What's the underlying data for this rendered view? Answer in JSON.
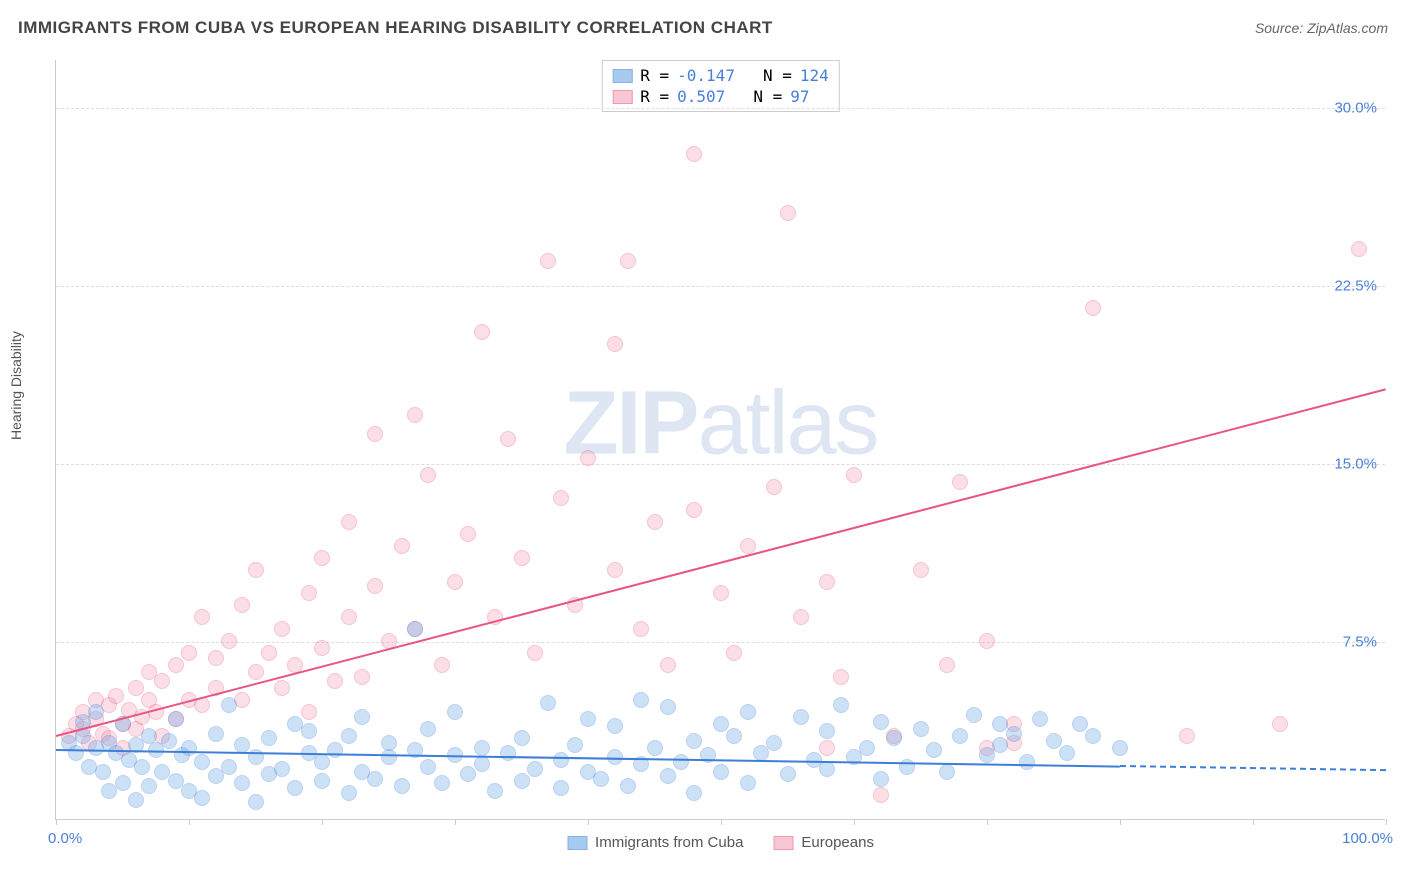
{
  "header": {
    "title": "IMMIGRANTS FROM CUBA VS EUROPEAN HEARING DISABILITY CORRELATION CHART",
    "source": "Source: ZipAtlas.com"
  },
  "watermark": {
    "zip": "ZIP",
    "atlas": "atlas"
  },
  "ylabel": "Hearing Disability",
  "chart": {
    "type": "scatter",
    "xlim": [
      0,
      100
    ],
    "ylim": [
      0,
      32
    ],
    "yticks": [
      {
        "val": 7.5,
        "label": "7.5%"
      },
      {
        "val": 15.0,
        "label": "15.0%"
      },
      {
        "val": 22.5,
        "label": "22.5%"
      },
      {
        "val": 30.0,
        "label": "30.0%"
      }
    ],
    "xtick_labels": {
      "min": "0.0%",
      "max": "100.0%"
    },
    "xtick_positions": [
      0,
      10,
      20,
      30,
      40,
      50,
      60,
      70,
      80,
      90,
      100
    ],
    "background_color": "#ffffff",
    "grid_color": "#dddddd"
  },
  "series": {
    "cuba": {
      "label": "Immigrants from Cuba",
      "color_fill": "#6ea8e8",
      "color_stroke": "#3d7fd6",
      "fill_opacity": 0.35,
      "R": "-0.147",
      "N": "124",
      "trend": {
        "x1": 0,
        "y1": 3.0,
        "x2": 80,
        "y2": 2.3,
        "dash_to_x": 100
      },
      "points": [
        [
          1,
          3.2
        ],
        [
          1.5,
          2.8
        ],
        [
          2,
          3.5
        ],
        [
          2,
          4.1
        ],
        [
          2.5,
          2.2
        ],
        [
          3,
          3.0
        ],
        [
          3,
          4.5
        ],
        [
          3.5,
          2.0
        ],
        [
          4,
          3.2
        ],
        [
          4,
          1.2
        ],
        [
          4.5,
          2.8
        ],
        [
          5,
          4.0
        ],
        [
          5,
          1.5
        ],
        [
          5.5,
          2.5
        ],
        [
          6,
          3.1
        ],
        [
          6,
          0.8
        ],
        [
          6.5,
          2.2
        ],
        [
          7,
          3.5
        ],
        [
          7,
          1.4
        ],
        [
          7.5,
          2.9
        ],
        [
          8,
          2.0
        ],
        [
          8.5,
          3.3
        ],
        [
          9,
          1.6
        ],
        [
          9,
          4.2
        ],
        [
          9.5,
          2.7
        ],
        [
          10,
          1.2
        ],
        [
          10,
          3.0
        ],
        [
          11,
          2.4
        ],
        [
          11,
          0.9
        ],
        [
          12,
          3.6
        ],
        [
          12,
          1.8
        ],
        [
          13,
          2.2
        ],
        [
          13,
          4.8
        ],
        [
          14,
          1.5
        ],
        [
          14,
          3.1
        ],
        [
          15,
          2.6
        ],
        [
          15,
          0.7
        ],
        [
          16,
          3.4
        ],
        [
          16,
          1.9
        ],
        [
          17,
          2.1
        ],
        [
          18,
          4.0
        ],
        [
          18,
          1.3
        ],
        [
          19,
          2.8
        ],
        [
          19,
          3.7
        ],
        [
          20,
          1.6
        ],
        [
          20,
          2.4
        ],
        [
          21,
          2.9
        ],
        [
          22,
          1.1
        ],
        [
          22,
          3.5
        ],
        [
          23,
          2.0
        ],
        [
          23,
          4.3
        ],
        [
          24,
          1.7
        ],
        [
          25,
          2.6
        ],
        [
          25,
          3.2
        ],
        [
          26,
          1.4
        ],
        [
          27,
          2.9
        ],
        [
          27,
          8.0
        ],
        [
          28,
          2.2
        ],
        [
          28,
          3.8
        ],
        [
          29,
          1.5
        ],
        [
          30,
          2.7
        ],
        [
          30,
          4.5
        ],
        [
          31,
          1.9
        ],
        [
          32,
          3.0
        ],
        [
          32,
          2.3
        ],
        [
          33,
          1.2
        ],
        [
          34,
          2.8
        ],
        [
          35,
          3.4
        ],
        [
          35,
          1.6
        ],
        [
          36,
          2.1
        ],
        [
          37,
          4.9
        ],
        [
          38,
          2.5
        ],
        [
          38,
          1.3
        ],
        [
          39,
          3.1
        ],
        [
          40,
          2.0
        ],
        [
          40,
          4.2
        ],
        [
          41,
          1.7
        ],
        [
          42,
          2.6
        ],
        [
          42,
          3.9
        ],
        [
          43,
          1.4
        ],
        [
          44,
          2.3
        ],
        [
          44,
          5.0
        ],
        [
          45,
          3.0
        ],
        [
          46,
          1.8
        ],
        [
          46,
          4.7
        ],
        [
          47,
          2.4
        ],
        [
          48,
          3.3
        ],
        [
          48,
          1.1
        ],
        [
          49,
          2.7
        ],
        [
          50,
          4.0
        ],
        [
          50,
          2.0
        ],
        [
          51,
          3.5
        ],
        [
          52,
          1.5
        ],
        [
          52,
          4.5
        ],
        [
          53,
          2.8
        ],
        [
          54,
          3.2
        ],
        [
          55,
          1.9
        ],
        [
          56,
          4.3
        ],
        [
          57,
          2.5
        ],
        [
          58,
          3.7
        ],
        [
          58,
          2.1
        ],
        [
          59,
          4.8
        ],
        [
          60,
          2.6
        ],
        [
          61,
          3.0
        ],
        [
          62,
          1.7
        ],
        [
          62,
          4.1
        ],
        [
          63,
          3.4
        ],
        [
          64,
          2.2
        ],
        [
          65,
          3.8
        ],
        [
          66,
          2.9
        ],
        [
          67,
          2.0
        ],
        [
          68,
          3.5
        ],
        [
          69,
          4.4
        ],
        [
          70,
          2.7
        ],
        [
          71,
          3.1
        ],
        [
          71,
          4.0
        ],
        [
          72,
          3.6
        ],
        [
          73,
          2.4
        ],
        [
          74,
          4.2
        ],
        [
          75,
          3.3
        ],
        [
          76,
          2.8
        ],
        [
          77,
          4.0
        ],
        [
          78,
          3.5
        ],
        [
          80,
          3.0
        ]
      ]
    },
    "europeans": {
      "label": "Europeans",
      "color_fill": "#f5a3b8",
      "color_stroke": "#e8557e",
      "fill_opacity": 0.35,
      "R": "0.507",
      "N": "97",
      "trend": {
        "x1": 0,
        "y1": 3.6,
        "x2": 100,
        "y2": 18.2,
        "dash_to_x": null
      },
      "points": [
        [
          1,
          3.5
        ],
        [
          1.5,
          4.0
        ],
        [
          2,
          3.8
        ],
        [
          2,
          4.5
        ],
        [
          2.5,
          3.2
        ],
        [
          3,
          4.2
        ],
        [
          3,
          5.0
        ],
        [
          3.5,
          3.6
        ],
        [
          4,
          4.8
        ],
        [
          4,
          3.4
        ],
        [
          4.5,
          5.2
        ],
        [
          5,
          4.0
        ],
        [
          5,
          3.0
        ],
        [
          5.5,
          4.6
        ],
        [
          6,
          5.5
        ],
        [
          6,
          3.8
        ],
        [
          6.5,
          4.3
        ],
        [
          7,
          5.0
        ],
        [
          7,
          6.2
        ],
        [
          7.5,
          4.5
        ],
        [
          8,
          3.5
        ],
        [
          8,
          5.8
        ],
        [
          9,
          6.5
        ],
        [
          9,
          4.2
        ],
        [
          10,
          5.0
        ],
        [
          10,
          7.0
        ],
        [
          11,
          4.8
        ],
        [
          11,
          8.5
        ],
        [
          12,
          5.5
        ],
        [
          12,
          6.8
        ],
        [
          13,
          7.5
        ],
        [
          14,
          5.0
        ],
        [
          14,
          9.0
        ],
        [
          15,
          6.2
        ],
        [
          15,
          10.5
        ],
        [
          16,
          7.0
        ],
        [
          17,
          5.5
        ],
        [
          17,
          8.0
        ],
        [
          18,
          6.5
        ],
        [
          19,
          4.5
        ],
        [
          19,
          9.5
        ],
        [
          20,
          11.0
        ],
        [
          20,
          7.2
        ],
        [
          21,
          5.8
        ],
        [
          22,
          8.5
        ],
        [
          22,
          12.5
        ],
        [
          23,
          6.0
        ],
        [
          24,
          9.8
        ],
        [
          24,
          16.2
        ],
        [
          25,
          7.5
        ],
        [
          26,
          11.5
        ],
        [
          27,
          17.0
        ],
        [
          27,
          8.0
        ],
        [
          28,
          14.5
        ],
        [
          29,
          6.5
        ],
        [
          30,
          10.0
        ],
        [
          31,
          12.0
        ],
        [
          32,
          20.5
        ],
        [
          33,
          8.5
        ],
        [
          34,
          16.0
        ],
        [
          35,
          11.0
        ],
        [
          36,
          7.0
        ],
        [
          37,
          23.5
        ],
        [
          38,
          13.5
        ],
        [
          39,
          9.0
        ],
        [
          40,
          15.2
        ],
        [
          42,
          20.0
        ],
        [
          42,
          10.5
        ],
        [
          43,
          23.5
        ],
        [
          44,
          8.0
        ],
        [
          45,
          12.5
        ],
        [
          46,
          6.5
        ],
        [
          48,
          13.0
        ],
        [
          48,
          28.0
        ],
        [
          50,
          9.5
        ],
        [
          51,
          7.0
        ],
        [
          52,
          11.5
        ],
        [
          54,
          14.0
        ],
        [
          55,
          25.5
        ],
        [
          56,
          8.5
        ],
        [
          58,
          3.0
        ],
        [
          58,
          10.0
        ],
        [
          59,
          6.0
        ],
        [
          60,
          14.5
        ],
        [
          62,
          1.0
        ],
        [
          63,
          3.5
        ],
        [
          65,
          10.5
        ],
        [
          67,
          6.5
        ],
        [
          68,
          14.2
        ],
        [
          70,
          3.0
        ],
        [
          70,
          7.5
        ],
        [
          72,
          4.0
        ],
        [
          78,
          21.5
        ],
        [
          85,
          3.5
        ],
        [
          92,
          4.0
        ],
        [
          98,
          24.0
        ],
        [
          72,
          3.2
        ]
      ]
    }
  },
  "legend_top_rows": [
    {
      "swatch_series": "cuba",
      "r_label": "R = ",
      "n_label": "N = "
    },
    {
      "swatch_series": "europeans",
      "r_label": "R = ",
      "n_label": "N = "
    }
  ]
}
